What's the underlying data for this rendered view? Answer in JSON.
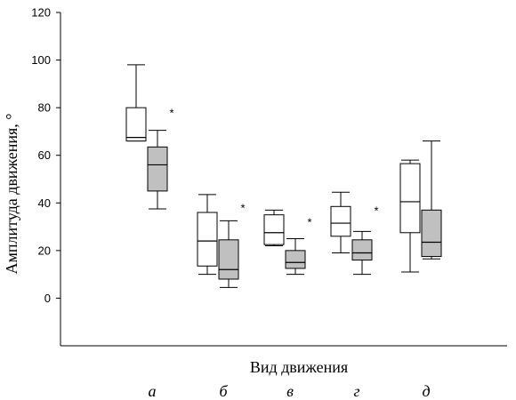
{
  "chart_data": {
    "type": "box",
    "title": "",
    "xlabel": "Вид движения",
    "ylabel": "Амплитуда движения, °",
    "ylim": [
      -20,
      120
    ],
    "yticks": [
      0,
      20,
      40,
      60,
      80,
      100,
      120
    ],
    "grid": false,
    "legend": "none",
    "categories": [
      "а",
      "б",
      "в",
      "г",
      "д"
    ],
    "series": [
      {
        "color": "#ffffff",
        "boxes": [
          {
            "min": 66,
            "q1": 66,
            "median": 67.5,
            "q3": 80,
            "max": 98
          },
          {
            "min": 10,
            "q1": 13.5,
            "median": 24,
            "q3": 36,
            "max": 43.5
          },
          {
            "min": 22,
            "q1": 22.5,
            "median": 27.5,
            "q3": 35,
            "max": 37
          },
          {
            "min": 19,
            "q1": 26,
            "median": 31.5,
            "q3": 38.5,
            "max": 44.5
          },
          {
            "min": 11,
            "q1": 27.5,
            "median": 40.5,
            "q3": 56.5,
            "max": 58
          }
        ]
      },
      {
        "color": "#c0c0c0",
        "boxes": [
          {
            "min": 37.5,
            "q1": 45,
            "median": 56,
            "q3": 63.5,
            "max": 70.5
          },
          {
            "min": 4.5,
            "q1": 8,
            "median": 12,
            "q3": 24.5,
            "max": 32.5
          },
          {
            "min": 10,
            "q1": 12.5,
            "median": 15,
            "q3": 20,
            "max": 25
          },
          {
            "min": 10,
            "q1": 16,
            "median": 19,
            "q3": 24.5,
            "max": 28
          },
          {
            "min": 16.5,
            "q1": 17.5,
            "median": 23.5,
            "q3": 37,
            "max": 66
          }
        ]
      }
    ],
    "annotations": [
      {
        "category": "а",
        "text": "*",
        "y": 78
      },
      {
        "category": "б",
        "text": "*",
        "y": 38
      },
      {
        "category": "в",
        "text": "*",
        "y": 32
      },
      {
        "category": "г",
        "text": "*",
        "y": 37
      }
    ]
  }
}
